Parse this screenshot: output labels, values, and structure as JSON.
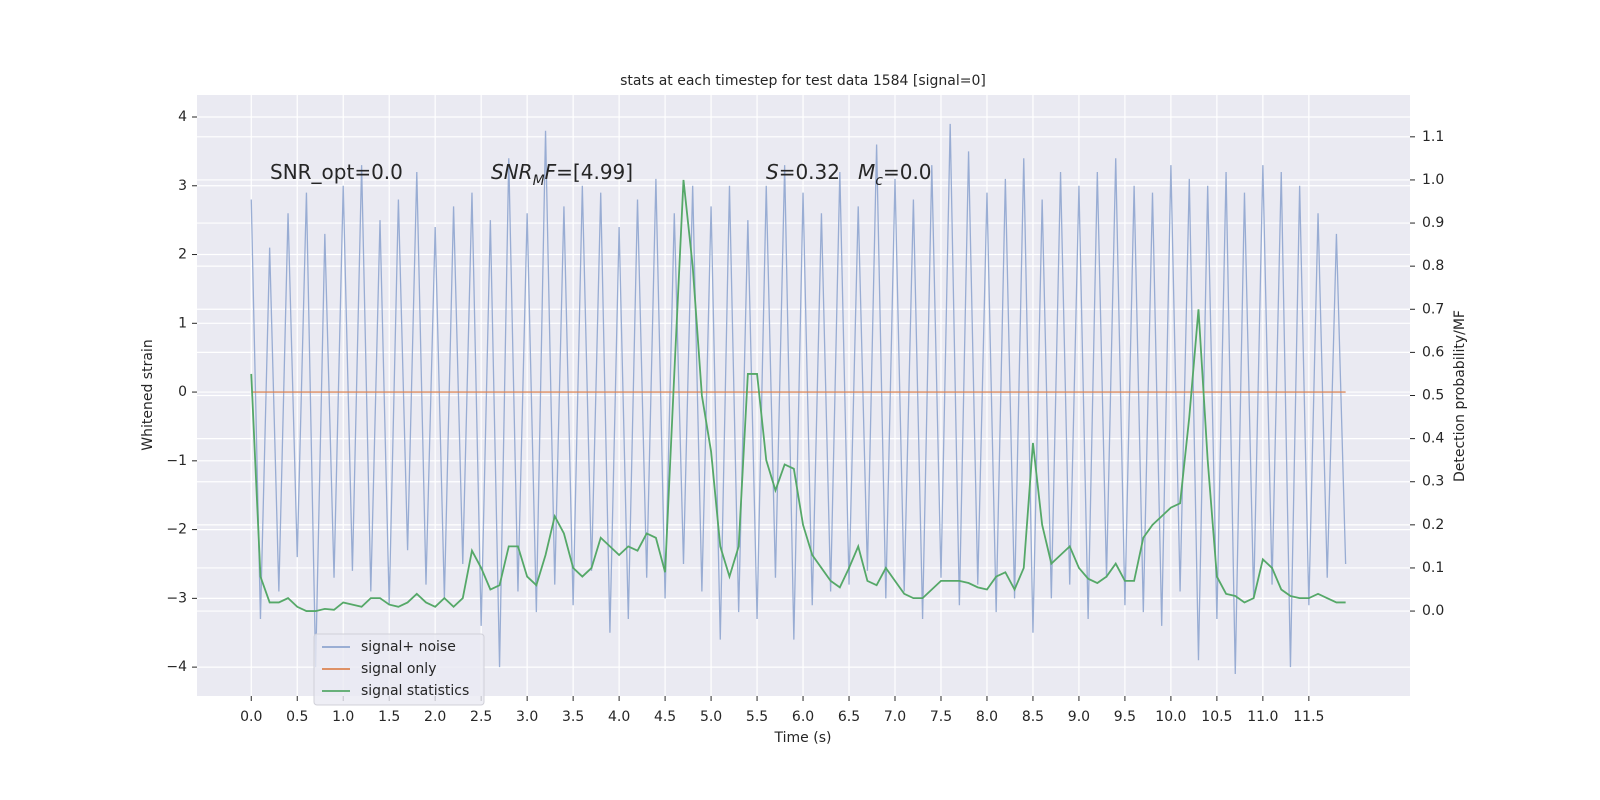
{
  "chart_data": {
    "type": "line",
    "title": "stats at each timestep for test data 1584 [signal=0]",
    "xlabel": "Time (s)",
    "ylabel": "Whitened strain",
    "y2label": "Detection probability/MF",
    "annotations": [
      [
        {
          "t": "SNR_opt=0.0"
        }
      ],
      [
        {
          "t": "SNR",
          "italic": true
        },
        {
          "t": "M",
          "italic": true,
          "sub": true
        },
        {
          "t": "F",
          "italic": true
        },
        {
          "t": "=[4.99]"
        }
      ],
      [
        {
          "t": "S",
          "italic": true
        },
        {
          "t": "=0.32"
        }
      ],
      [
        {
          "t": "M",
          "italic": true
        },
        {
          "t": "c",
          "italic": true,
          "sub": true
        },
        {
          "t": "=0.0"
        }
      ]
    ],
    "grid": true,
    "background": "#eaeaf2",
    "legend": "lower left",
    "xlim": [
      -0.59,
      12.6
    ],
    "ylim": [
      -4.42,
      4.32
    ],
    "y2lim": [
      -0.197,
      1.197
    ],
    "xticks": [
      {
        "value": 0,
        "label": "0.0"
      },
      0.5,
      {
        "value": 1,
        "label": "1.0"
      },
      1.5,
      {
        "value": 2,
        "label": "2.0"
      },
      2.5,
      {
        "value": 3,
        "label": "3.0"
      },
      3.5,
      {
        "value": 4,
        "label": "4.0"
      },
      4.5,
      {
        "value": 5,
        "label": "5.0"
      },
      5.5,
      {
        "value": 6,
        "label": "6.0"
      },
      6.5,
      {
        "value": 7,
        "label": "7.0"
      },
      7.5,
      {
        "value": 8,
        "label": "8.0"
      },
      8.5,
      {
        "value": 9,
        "label": "9.0"
      },
      9.5,
      {
        "value": 10,
        "label": "10.0"
      },
      10.5,
      {
        "value": 11,
        "label": "11.0"
      },
      11.5
    ],
    "yticks": [
      {
        "value": -4,
        "label": "−4"
      },
      {
        "value": -3,
        "label": "−3"
      },
      {
        "value": -2,
        "label": "−2"
      },
      {
        "value": -1,
        "label": "−1"
      },
      0,
      1,
      2,
      3,
      4
    ],
    "y2ticks": [
      {
        "value": 0,
        "label": "0.0"
      },
      0.1,
      0.2,
      0.3,
      0.4,
      0.5,
      0.6,
      0.7,
      0.8,
      0.9,
      {
        "value": 1,
        "label": "1.0"
      },
      1.1
    ],
    "x": [
      0,
      0.1,
      0.2,
      0.3,
      0.4,
      0.5,
      0.6,
      0.7,
      0.8,
      0.9,
      1,
      1.1,
      1.2,
      1.3,
      1.4,
      1.5,
      1.6,
      1.7,
      1.8,
      1.9,
      2,
      2.1,
      2.2,
      2.3,
      2.4,
      2.5,
      2.6,
      2.7,
      2.8,
      2.9,
      3,
      3.1,
      3.2,
      3.3,
      3.4,
      3.5,
      3.6,
      3.7,
      3.8,
      3.9,
      4,
      4.1,
      4.2,
      4.3,
      4.4,
      4.5,
      4.6,
      4.7,
      4.8,
      4.9,
      5,
      5.1,
      5.2,
      5.3,
      5.4,
      5.5,
      5.6,
      5.7,
      5.8,
      5.9,
      6,
      6.1,
      6.2,
      6.3,
      6.4,
      6.5,
      6.6,
      6.7,
      6.8,
      6.9,
      7,
      7.1,
      7.2,
      7.3,
      7.4,
      7.5,
      7.6,
      7.7,
      7.8,
      7.9,
      8,
      8.1,
      8.2,
      8.3,
      8.4,
      8.5,
      8.6,
      8.7,
      8.8,
      8.9,
      9,
      9.1,
      9.2,
      9.3,
      9.4,
      9.5,
      9.6,
      9.7,
      9.8,
      9.9,
      10,
      10.1,
      10.2,
      10.3,
      10.4,
      10.5,
      10.6,
      10.7,
      10.8,
      10.9,
      11,
      11.1,
      11.2,
      11.3,
      11.4,
      11.5,
      11.6,
      11.7,
      11.8,
      11.9
    ],
    "series": [
      {
        "name": "signal+ noise",
        "color": "#8fa5cf",
        "values": [
          2.8,
          -3.3,
          2.1,
          -2.9,
          2.6,
          -2.4,
          2.9,
          -4.0,
          2.3,
          -2.7,
          3.0,
          -2.6,
          3.3,
          -2.9,
          2.5,
          -3.1,
          2.8,
          -2.3,
          3.2,
          -2.8,
          2.4,
          -3.0,
          2.7,
          -2.5,
          2.9,
          -3.4,
          2.5,
          -4.0,
          3.4,
          -2.9,
          2.6,
          -3.2,
          3.8,
          -2.8,
          2.7,
          -3.1,
          3.0,
          -2.6,
          2.9,
          -3.5,
          2.4,
          -3.3,
          2.8,
          -2.7,
          3.1,
          -3.0,
          2.6,
          -2.5,
          3.0,
          -2.9,
          2.7,
          -3.6,
          3.0,
          -3.2,
          2.5,
          -3.3,
          3.0,
          -2.7,
          3.3,
          -3.6,
          2.9,
          -3.1,
          2.6,
          -2.9,
          3.2,
          -2.8,
          2.7,
          -2.6,
          3.6,
          -3.0,
          3.1,
          -2.9,
          2.8,
          -3.3,
          3.3,
          -2.7,
          3.9,
          -3.1,
          3.5,
          -2.8,
          2.9,
          -3.2,
          3.1,
          -3.0,
          3.4,
          -3.5,
          2.8,
          -3.0,
          3.2,
          -2.8,
          3.0,
          -3.3,
          3.2,
          -2.7,
          3.4,
          -3.1,
          3.0,
          -3.2,
          2.9,
          -3.4,
          3.3,
          -2.9,
          3.1,
          -3.9,
          3.0,
          -3.3,
          3.2,
          -4.1,
          2.9,
          -3.0,
          3.3,
          -2.8,
          3.2,
          -4.0,
          3.0,
          -3.1,
          2.6,
          -2.7,
          2.3,
          -2.5
        ]
      },
      {
        "name": "signal only",
        "color": "#dd8452",
        "values": [
          0,
          0,
          0,
          0,
          0,
          0,
          0,
          0,
          0,
          0,
          0,
          0,
          0,
          0,
          0,
          0,
          0,
          0,
          0,
          0,
          0,
          0,
          0,
          0,
          0,
          0,
          0,
          0,
          0,
          0,
          0,
          0,
          0,
          0,
          0,
          0,
          0,
          0,
          0,
          0,
          0,
          0,
          0,
          0,
          0,
          0,
          0,
          0,
          0,
          0,
          0,
          0,
          0,
          0,
          0,
          0,
          0,
          0,
          0,
          0,
          0,
          0,
          0,
          0,
          0,
          0,
          0,
          0,
          0,
          0,
          0,
          0,
          0,
          0,
          0,
          0,
          0,
          0,
          0,
          0,
          0,
          0,
          0,
          0,
          0,
          0,
          0,
          0,
          0,
          0,
          0,
          0,
          0,
          0,
          0,
          0,
          0,
          0,
          0,
          0,
          0,
          0,
          0,
          0,
          0,
          0,
          0,
          0,
          0,
          0,
          0,
          0,
          0,
          0,
          0,
          0,
          0,
          0,
          0,
          0
        ]
      },
      {
        "name": "signal statistics",
        "color": "#55a868",
        "axis": "y2",
        "values": [
          0.55,
          0.08,
          0.02,
          0.02,
          0.03,
          0.01,
          0,
          0,
          0.005,
          0.003,
          0.02,
          0.015,
          0.01,
          0.03,
          0.03,
          0.015,
          0.01,
          0.02,
          0.04,
          0.02,
          0.01,
          0.03,
          0.01,
          0.03,
          0.14,
          0.1,
          0.05,
          0.06,
          0.15,
          0.15,
          0.08,
          0.06,
          0.13,
          0.22,
          0.18,
          0.1,
          0.08,
          0.1,
          0.17,
          0.15,
          0.13,
          0.15,
          0.14,
          0.18,
          0.17,
          0.09,
          0.55,
          1.0,
          0.8,
          0.5,
          0.37,
          0.15,
          0.08,
          0.15,
          0.55,
          0.55,
          0.35,
          0.28,
          0.34,
          0.33,
          0.2,
          0.13,
          0.1,
          0.07,
          0.055,
          0.1,
          0.15,
          0.07,
          0.06,
          0.1,
          0.07,
          0.04,
          0.03,
          0.03,
          0.05,
          0.07,
          0.07,
          0.07,
          0.065,
          0.055,
          0.05,
          0.08,
          0.09,
          0.05,
          0.1,
          0.39,
          0.2,
          0.11,
          0.13,
          0.15,
          0.1,
          0.075,
          0.065,
          0.08,
          0.11,
          0.07,
          0.07,
          0.17,
          0.2,
          0.22,
          0.24,
          0.25,
          0.45,
          0.7,
          0.35,
          0.08,
          0.04,
          0.035,
          0.02,
          0.03,
          0.12,
          0.1,
          0.05,
          0.035,
          0.03,
          0.03,
          0.04,
          0.03,
          0.02,
          0.02
        ]
      }
    ]
  }
}
